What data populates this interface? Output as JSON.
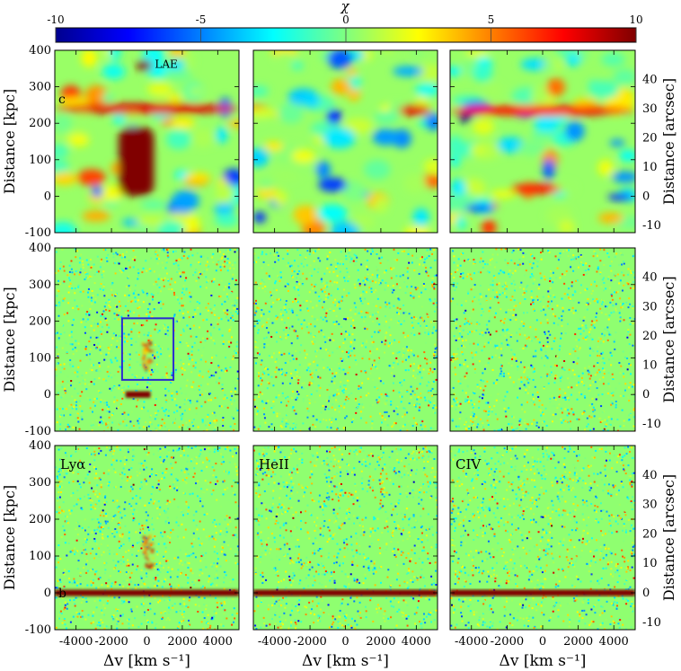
{
  "colorbar": {
    "label": "χ",
    "min": -10,
    "max": 10,
    "ticks": [
      -10,
      -5,
      0,
      5,
      10
    ],
    "tick_labels": [
      "-10",
      "-5",
      "0",
      "5",
      "10"
    ],
    "colormap": "jet"
  },
  "chart_data": {
    "type": "heatmap",
    "layout": "3 rows x 3 columns",
    "xlabel": "Δv [km s⁻¹]",
    "ylabel_left": "Distance [kpc]",
    "ylabel_right": "Distance [arcsec]",
    "x_range": [
      -5200,
      5200
    ],
    "y_range_kpc": [
      -100,
      400
    ],
    "y_range_arcsec": [
      -12.5,
      50
    ],
    "x_ticks": [
      -4000,
      -2000,
      0,
      2000,
      4000
    ],
    "x_tick_labels": [
      "-4000",
      "-2000",
      "0",
      "2000",
      "4000"
    ],
    "y_ticks_kpc": [
      -100,
      0,
      100,
      200,
      300,
      400
    ],
    "y_tick_labels_kpc": [
      "-100",
      "0",
      "100",
      "200",
      "300",
      "400"
    ],
    "y_ticks_arcsec": [
      -10,
      0,
      10,
      20,
      30,
      40
    ],
    "y_tick_labels_arcsec": [
      "-10",
      "0",
      "10",
      "20",
      "30",
      "40"
    ],
    "columns": [
      "Lyα",
      "HeII",
      "CIV"
    ],
    "rows": [
      {
        "row": 1,
        "style": "smoothed",
        "panel_labels": [
          "c",
          "",
          ""
        ],
        "annotation": "LAE",
        "features": [
          {
            "col": 0,
            "x_from": -1600,
            "x_to": 400,
            "y_from": 0,
            "y_to": 190,
            "chi": 10
          },
          {
            "col": 0,
            "x_from": -5200,
            "x_to": 5200,
            "y_at": 240,
            "chi": 8
          },
          {
            "col": 0,
            "x_from": -600,
            "x_to": 300,
            "y_at": 358,
            "chi": 10
          },
          {
            "col": 2,
            "x_from": 1800,
            "x_to": 3600,
            "y_at": 235,
            "chi": 10
          },
          {
            "col": 2,
            "x_from": -5200,
            "x_to": 5200,
            "y_at": 235,
            "chi": 7
          },
          {
            "col": 2,
            "x_from": -1800,
            "x_to": 1000,
            "y_at": 20,
            "chi": 7
          },
          {
            "col": 1,
            "x_from": 3000,
            "x_to": 4800,
            "y_at": 235,
            "chi": 8
          }
        ]
      },
      {
        "row": 2,
        "style": "noise",
        "box": {
          "col": 0,
          "x_from": -1400,
          "x_to": 1500,
          "y_from": 40,
          "y_to": 208
        },
        "features": [
          {
            "col": 0,
            "x_from": -1200,
            "x_to": 200,
            "y_at": 0,
            "chi": 10
          },
          {
            "col": 0,
            "x_from": -300,
            "x_to": 300,
            "y_from": 70,
            "y_to": 150,
            "chi": 7
          }
        ]
      },
      {
        "row": 3,
        "style": "noise",
        "panel_labels": [
          "b",
          "",
          ""
        ],
        "features": [
          {
            "col": 0,
            "x_from": -5200,
            "x_to": 5200,
            "y_at": 0,
            "chi": 10
          },
          {
            "col": 1,
            "x_from": -5200,
            "x_to": 5200,
            "y_at": 0,
            "chi": 10
          },
          {
            "col": 2,
            "x_from": -5200,
            "x_to": 5200,
            "y_at": 0,
            "chi": 10
          },
          {
            "col": 0,
            "x_from": -300,
            "x_to": 300,
            "y_from": 70,
            "y_to": 170,
            "chi": 6
          }
        ]
      }
    ]
  }
}
